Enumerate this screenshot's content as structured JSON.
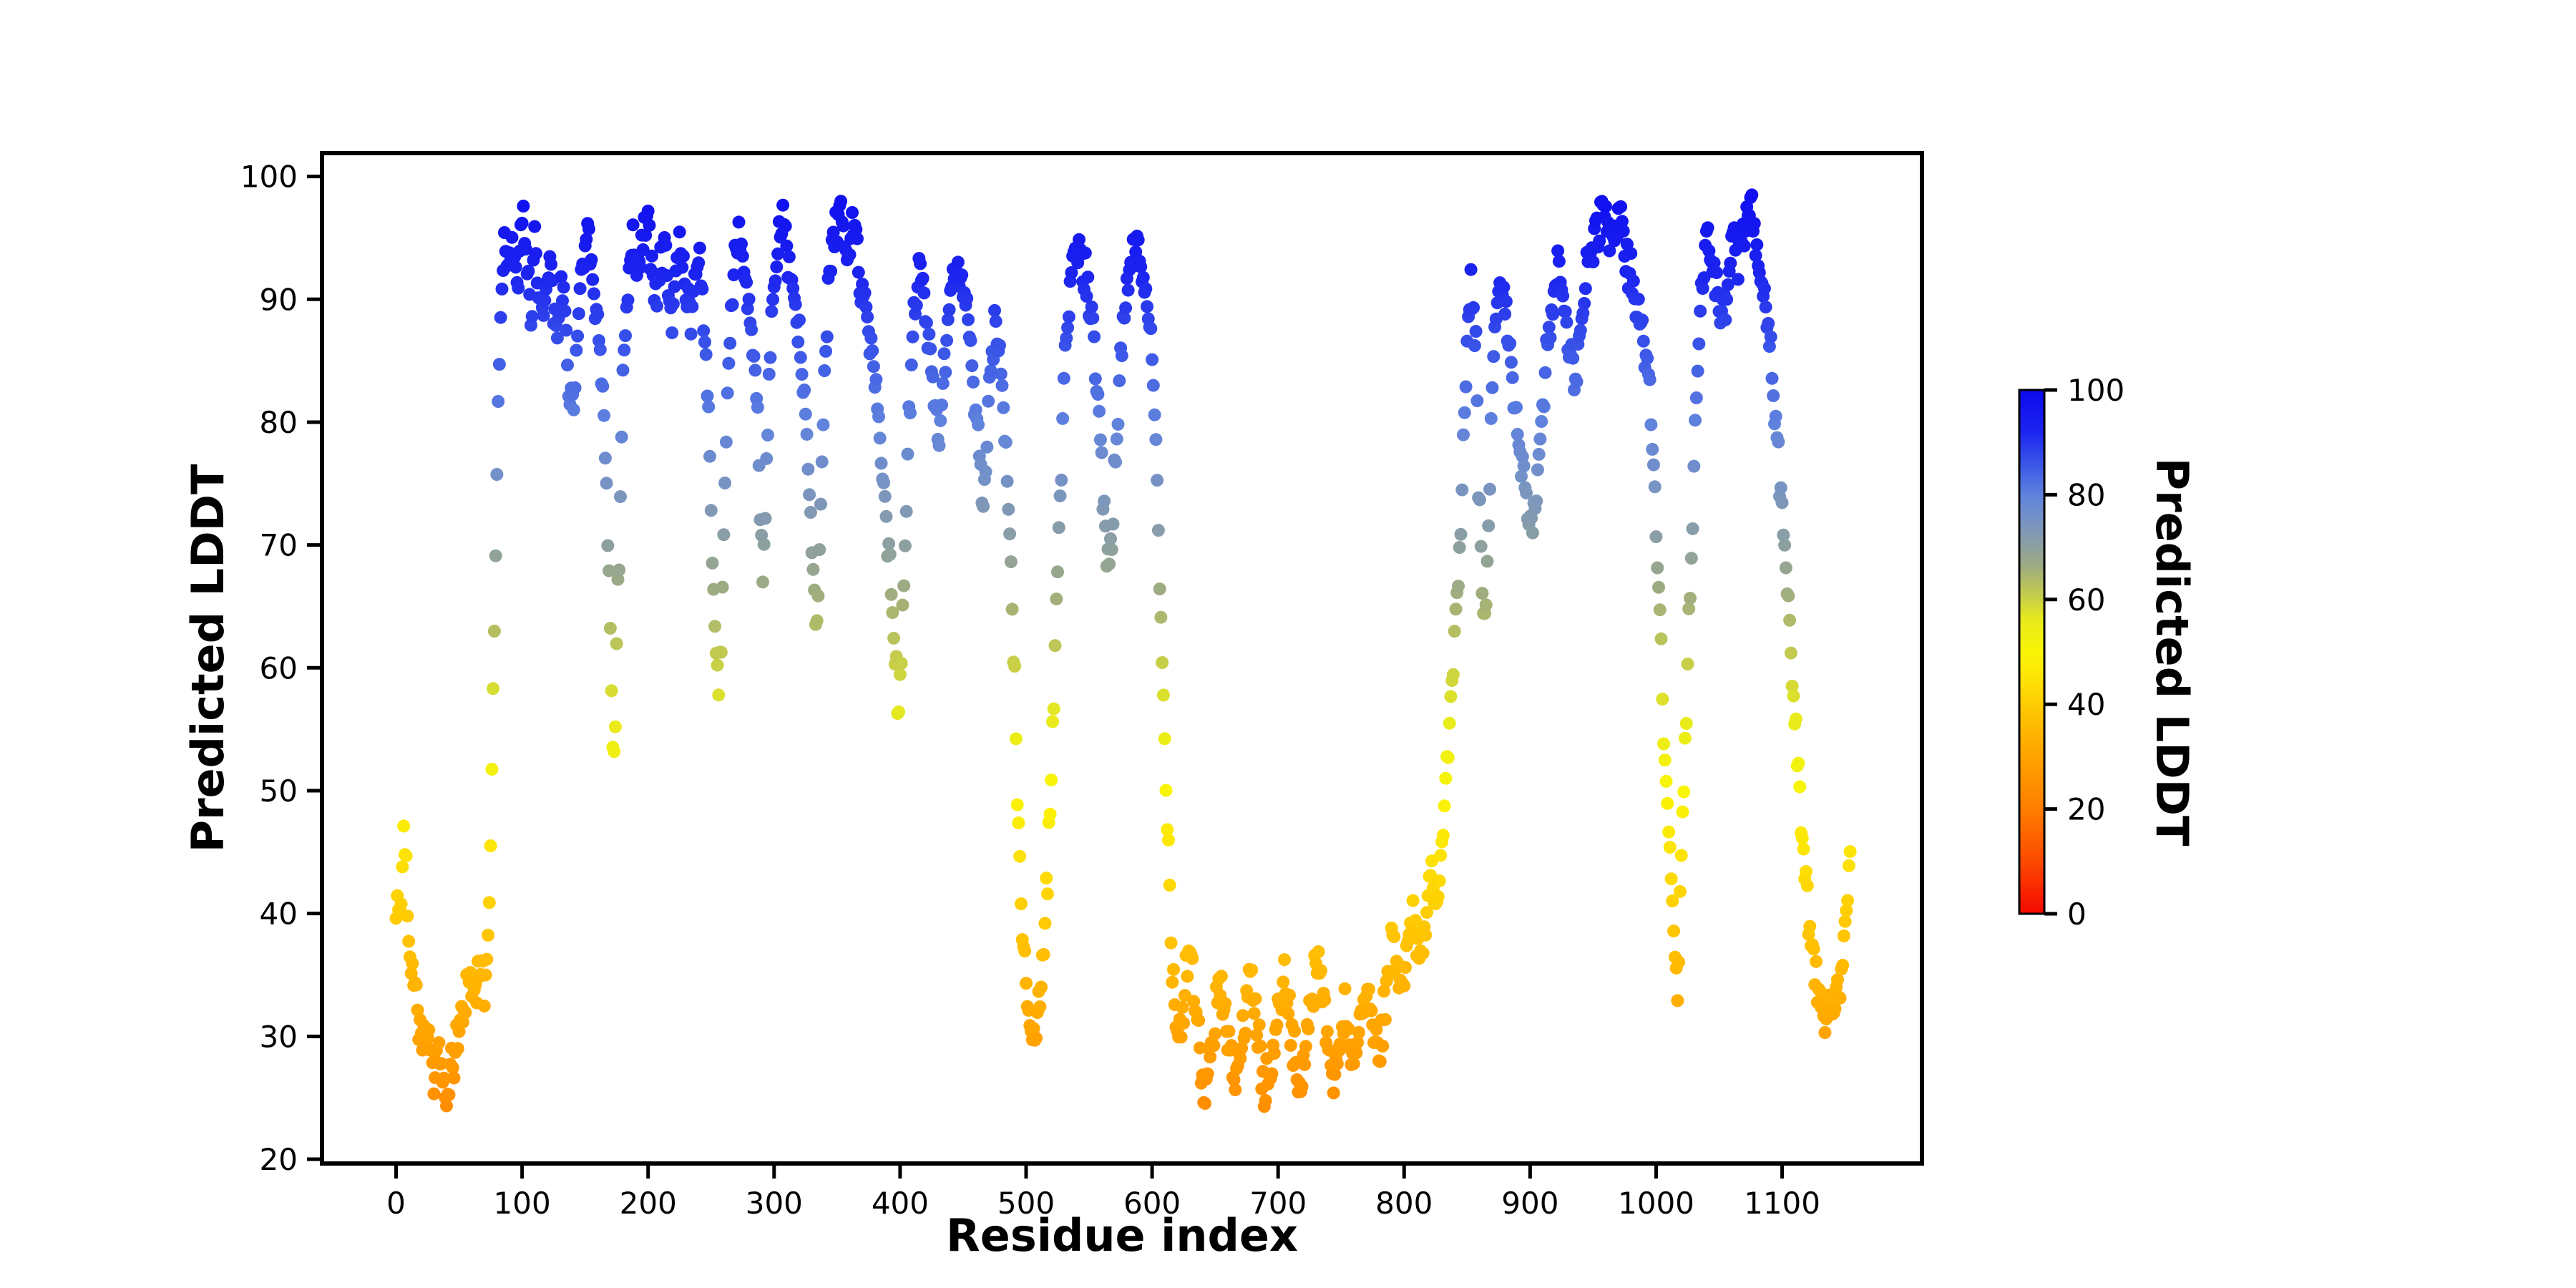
{
  "figure": {
    "background": "#ffffff"
  },
  "chart_data": {
    "type": "scatter",
    "title": "",
    "xlabel": "Residue index",
    "ylabel": "Predicted LDDT",
    "legend": "none",
    "grid": false,
    "xlim": [
      -58.8,
      1211
    ],
    "ylim": [
      19.65,
      101.9
    ],
    "xticks": [
      0,
      100,
      200,
      300,
      400,
      500,
      600,
      700,
      800,
      900,
      1000,
      1100
    ],
    "yticks": [
      20,
      30,
      40,
      50,
      60,
      70,
      80,
      90,
      100
    ],
    "colorbar": {
      "label": "Predicted LDDT",
      "ticks": [
        0,
        20,
        40,
        60,
        80,
        100
      ],
      "min": 0,
      "max": 100
    },
    "colormap": [
      [
        0,
        "#f50800"
      ],
      [
        10,
        "#fc4a00"
      ],
      [
        20,
        "#ff7e00"
      ],
      [
        30,
        "#ffa300"
      ],
      [
        38,
        "#ffc302"
      ],
      [
        45,
        "#fde405"
      ],
      [
        50,
        "#f9f506"
      ],
      [
        56,
        "#e8ea1c"
      ],
      [
        61,
        "#c3cb4e"
      ],
      [
        66,
        "#a0ad7e"
      ],
      [
        70,
        "#8da0a0"
      ],
      [
        75,
        "#7793c4"
      ],
      [
        80,
        "#5f82dd"
      ],
      [
        86,
        "#3a55e8"
      ],
      [
        92,
        "#1c24ef"
      ],
      [
        100,
        "#0d0af0"
      ]
    ],
    "marker_radius": 9,
    "n_points": 1155,
    "jitter": 2.3,
    "seed": 42,
    "value_clip": [
      23.2,
      99.0
    ],
    "profile": [
      [
        0,
        39.5
      ],
      [
        2,
        41
      ],
      [
        4,
        40
      ],
      [
        6,
        47
      ],
      [
        8,
        44
      ],
      [
        10,
        38
      ],
      [
        13,
        36
      ],
      [
        16,
        33.5
      ],
      [
        19,
        31
      ],
      [
        22,
        29.5
      ],
      [
        25,
        30.5
      ],
      [
        28,
        28
      ],
      [
        31,
        27
      ],
      [
        34,
        29
      ],
      [
        37,
        26
      ],
      [
        40,
        24.5
      ],
      [
        43,
        26.5
      ],
      [
        46,
        28
      ],
      [
        49,
        30
      ],
      [
        52,
        31.5
      ],
      [
        55,
        33
      ],
      [
        58,
        35.5
      ],
      [
        61,
        33
      ],
      [
        64,
        34.5
      ],
      [
        67,
        36.5
      ],
      [
        70,
        34
      ],
      [
        73,
        38
      ],
      [
        75,
        45
      ],
      [
        77,
        58
      ],
      [
        79,
        70
      ],
      [
        81,
        82
      ],
      [
        83,
        90
      ],
      [
        86,
        94
      ],
      [
        89,
        92
      ],
      [
        92,
        95
      ],
      [
        95,
        91
      ],
      [
        98,
        93.5
      ],
      [
        101,
        96
      ],
      [
        104,
        92
      ],
      [
        107,
        89
      ],
      [
        110,
        94
      ],
      [
        113,
        92
      ],
      [
        116,
        88
      ],
      [
        119,
        91
      ],
      [
        122,
        94
      ],
      [
        125,
        90
      ],
      [
        128,
        87
      ],
      [
        131,
        92
      ],
      [
        134,
        88
      ],
      [
        137,
        84
      ],
      [
        140,
        81
      ],
      [
        143,
        85
      ],
      [
        146,
        90
      ],
      [
        149,
        93
      ],
      [
        152,
        95
      ],
      [
        155,
        92
      ],
      [
        158,
        89
      ],
      [
        161,
        87
      ],
      [
        164,
        82
      ],
      [
        166,
        77
      ],
      [
        168,
        71
      ],
      [
        170,
        63
      ],
      [
        172,
        53
      ],
      [
        174,
        57
      ],
      [
        176,
        66
      ],
      [
        178,
        74
      ],
      [
        180,
        83
      ],
      [
        183,
        90
      ],
      [
        186,
        93
      ],
      [
        189,
        95.5
      ],
      [
        192,
        92
      ],
      [
        195,
        94
      ],
      [
        198,
        97
      ],
      [
        201,
        95
      ],
      [
        204,
        92
      ],
      [
        207,
        90
      ],
      [
        210,
        93
      ],
      [
        213,
        95
      ],
      [
        216,
        91
      ],
      [
        219,
        88
      ],
      [
        222,
        92
      ],
      [
        225,
        95
      ],
      [
        228,
        93
      ],
      [
        231,
        90
      ],
      [
        234,
        88
      ],
      [
        237,
        92
      ],
      [
        240,
        94
      ],
      [
        243,
        90
      ],
      [
        246,
        85
      ],
      [
        248,
        80
      ],
      [
        250,
        73
      ],
      [
        252,
        66
      ],
      [
        254,
        60
      ],
      [
        256,
        56
      ],
      [
        258,
        63
      ],
      [
        260,
        70
      ],
      [
        262,
        78
      ],
      [
        264,
        85
      ],
      [
        266,
        90
      ],
      [
        269,
        93
      ],
      [
        272,
        95
      ],
      [
        275,
        93
      ],
      [
        278,
        91
      ],
      [
        281,
        88
      ],
      [
        284,
        85
      ],
      [
        287,
        80
      ],
      [
        289,
        74
      ],
      [
        291,
        68
      ],
      [
        293,
        73
      ],
      [
        295,
        80
      ],
      [
        297,
        86
      ],
      [
        299,
        90
      ],
      [
        302,
        93
      ],
      [
        305,
        95
      ],
      [
        308,
        96
      ],
      [
        311,
        93
      ],
      [
        314,
        91
      ],
      [
        317,
        89
      ],
      [
        320,
        87
      ],
      [
        323,
        83
      ],
      [
        326,
        78
      ],
      [
        329,
        72
      ],
      [
        332,
        67
      ],
      [
        334,
        64
      ],
      [
        336,
        70
      ],
      [
        338,
        77
      ],
      [
        340,
        84
      ],
      [
        343,
        90
      ],
      [
        346,
        94
      ],
      [
        349,
        96
      ],
      [
        352,
        97.5
      ],
      [
        355,
        95
      ],
      [
        358,
        93
      ],
      [
        361,
        95
      ],
      [
        364,
        96
      ],
      [
        367,
        93
      ],
      [
        370,
        91
      ],
      [
        373,
        89
      ],
      [
        376,
        87
      ],
      [
        379,
        85
      ],
      [
        382,
        81
      ],
      [
        385,
        78
      ],
      [
        388,
        74
      ],
      [
        391,
        69
      ],
      [
        394,
        64
      ],
      [
        397,
        59
      ],
      [
        399,
        56.5
      ],
      [
        401,
        61
      ],
      [
        403,
        67
      ],
      [
        405,
        74
      ],
      [
        407,
        80
      ],
      [
        409,
        85
      ],
      [
        412,
        89
      ],
      [
        415,
        93
      ],
      [
        418,
        91
      ],
      [
        421,
        88
      ],
      [
        424,
        86
      ],
      [
        427,
        82
      ],
      [
        430,
        78
      ],
      [
        433,
        81
      ],
      [
        436,
        85
      ],
      [
        439,
        89
      ],
      [
        442,
        92
      ],
      [
        445,
        94
      ],
      [
        448,
        92
      ],
      [
        451,
        90
      ],
      [
        454,
        88
      ],
      [
        457,
        85
      ],
      [
        460,
        80
      ],
      [
        463,
        77
      ],
      [
        466,
        74
      ],
      [
        469,
        79
      ],
      [
        472,
        84
      ],
      [
        475,
        88
      ],
      [
        478,
        86
      ],
      [
        481,
        82
      ],
      [
        484,
        77
      ],
      [
        487,
        71
      ],
      [
        490,
        62
      ],
      [
        492,
        54
      ],
      [
        494,
        47
      ],
      [
        496,
        41
      ],
      [
        498,
        37
      ],
      [
        500,
        34
      ],
      [
        502,
        32
      ],
      [
        504,
        30.5
      ],
      [
        506,
        29.5
      ],
      [
        508,
        31
      ],
      [
        510,
        33
      ],
      [
        512,
        35
      ],
      [
        514,
        37
      ],
      [
        516,
        41
      ],
      [
        518,
        46
      ],
      [
        520,
        52
      ],
      [
        522,
        58
      ],
      [
        524,
        64
      ],
      [
        526,
        70
      ],
      [
        528,
        77
      ],
      [
        530,
        83
      ],
      [
        533,
        88
      ],
      [
        536,
        91
      ],
      [
        539,
        93
      ],
      [
        542,
        95
      ],
      [
        545,
        93
      ],
      [
        548,
        91
      ],
      [
        551,
        89
      ],
      [
        554,
        86
      ],
      [
        557,
        82
      ],
      [
        560,
        76
      ],
      [
        563,
        71
      ],
      [
        566,
        69
      ],
      [
        569,
        73
      ],
      [
        572,
        79
      ],
      [
        575,
        85
      ],
      [
        578,
        89
      ],
      [
        581,
        92
      ],
      [
        584,
        94
      ],
      [
        587,
        95
      ],
      [
        590,
        93
      ],
      [
        593,
        91
      ],
      [
        596,
        90
      ],
      [
        599,
        88
      ],
      [
        601,
        84
      ],
      [
        603,
        78
      ],
      [
        605,
        72
      ],
      [
        607,
        64
      ],
      [
        609,
        57
      ],
      [
        611,
        50
      ],
      [
        613,
        44
      ],
      [
        615,
        38
      ],
      [
        617,
        34
      ],
      [
        619,
        31
      ],
      [
        621,
        29
      ],
      [
        624,
        32
      ],
      [
        627,
        35
      ],
      [
        630,
        37
      ],
      [
        633,
        34
      ],
      [
        636,
        31
      ],
      [
        639,
        28
      ],
      [
        642,
        26
      ],
      [
        645,
        28
      ],
      [
        648,
        30
      ],
      [
        651,
        33
      ],
      [
        654,
        35
      ],
      [
        657,
        32
      ],
      [
        660,
        30
      ],
      [
        663,
        28
      ],
      [
        666,
        26
      ],
      [
        669,
        28
      ],
      [
        672,
        30
      ],
      [
        675,
        33
      ],
      [
        678,
        35
      ],
      [
        681,
        32
      ],
      [
        684,
        30
      ],
      [
        687,
        27
      ],
      [
        690,
        25.5
      ],
      [
        693,
        27
      ],
      [
        696,
        29
      ],
      [
        699,
        31
      ],
      [
        702,
        33
      ],
      [
        705,
        35
      ],
      [
        708,
        32
      ],
      [
        711,
        30
      ],
      [
        714,
        28
      ],
      [
        717,
        26
      ],
      [
        720,
        28
      ],
      [
        723,
        30
      ],
      [
        726,
        33
      ],
      [
        729,
        35
      ],
      [
        732,
        37
      ],
      [
        735,
        34
      ],
      [
        738,
        31
      ],
      [
        741,
        28
      ],
      [
        744,
        26
      ],
      [
        747,
        28
      ],
      [
        750,
        30
      ],
      [
        753,
        32
      ],
      [
        756,
        29
      ],
      [
        759,
        27
      ],
      [
        762,
        29
      ],
      [
        765,
        31
      ],
      [
        768,
        33
      ],
      [
        771,
        35
      ],
      [
        774,
        32
      ],
      [
        777,
        30
      ],
      [
        780,
        28
      ],
      [
        783,
        31
      ],
      [
        786,
        34
      ],
      [
        789,
        36
      ],
      [
        792,
        38
      ],
      [
        795,
        35
      ],
      [
        798,
        33
      ],
      [
        801,
        36
      ],
      [
        804,
        39
      ],
      [
        807,
        41
      ],
      [
        810,
        38
      ],
      [
        813,
        36
      ],
      [
        816,
        39
      ],
      [
        819,
        41
      ],
      [
        822,
        43
      ],
      [
        825,
        40
      ],
      [
        828,
        43
      ],
      [
        831,
        47
      ],
      [
        834,
        52
      ],
      [
        837,
        57
      ],
      [
        840,
        62
      ],
      [
        843,
        67
      ],
      [
        845,
        72
      ],
      [
        847,
        78
      ],
      [
        849,
        84
      ],
      [
        851,
        88
      ],
      [
        853,
        91
      ],
      [
        855,
        89
      ],
      [
        857,
        87
      ],
      [
        859,
        76
      ],
      [
        861,
        68
      ],
      [
        863,
        63
      ],
      [
        865,
        66
      ],
      [
        867,
        72
      ],
      [
        869,
        79
      ],
      [
        871,
        85
      ],
      [
        873,
        90
      ],
      [
        875,
        92
      ],
      [
        878,
        90
      ],
      [
        881,
        88
      ],
      [
        884,
        86
      ],
      [
        887,
        83
      ],
      [
        890,
        80
      ],
      [
        893,
        77
      ],
      [
        896,
        75
      ],
      [
        899,
        73
      ],
      [
        902,
        72
      ],
      [
        905,
        75
      ],
      [
        908,
        78
      ],
      [
        911,
        82
      ],
      [
        914,
        86
      ],
      [
        917,
        89
      ],
      [
        920,
        91
      ],
      [
        923,
        93
      ],
      [
        926,
        91
      ],
      [
        929,
        88
      ],
      [
        932,
        86
      ],
      [
        935,
        83
      ],
      [
        938,
        86
      ],
      [
        941,
        89
      ],
      [
        944,
        91
      ],
      [
        947,
        93
      ],
      [
        950,
        94
      ],
      [
        953,
        96
      ],
      [
        956,
        97
      ],
      [
        959,
        98
      ],
      [
        962,
        96
      ],
      [
        965,
        94
      ],
      [
        968,
        96
      ],
      [
        971,
        97
      ],
      [
        974,
        95
      ],
      [
        977,
        93
      ],
      [
        980,
        92
      ],
      [
        983,
        90
      ],
      [
        986,
        89
      ],
      [
        989,
        87
      ],
      [
        992,
        85
      ],
      [
        995,
        82
      ],
      [
        997,
        78
      ],
      [
        999,
        74
      ],
      [
        1001,
        69
      ],
      [
        1003,
        64
      ],
      [
        1005,
        58
      ],
      [
        1007,
        53
      ],
      [
        1009,
        49
      ],
      [
        1011,
        46
      ],
      [
        1013,
        43
      ],
      [
        1015,
        37
      ],
      [
        1017,
        33
      ],
      [
        1019,
        41
      ],
      [
        1021,
        48
      ],
      [
        1023,
        54
      ],
      [
        1025,
        60
      ],
      [
        1027,
        66
      ],
      [
        1029,
        72
      ],
      [
        1031,
        79
      ],
      [
        1033,
        85
      ],
      [
        1035,
        90
      ],
      [
        1038,
        93
      ],
      [
        1041,
        95
      ],
      [
        1044,
        93
      ],
      [
        1047,
        91
      ],
      [
        1050,
        89
      ],
      [
        1053,
        88
      ],
      [
        1056,
        90
      ],
      [
        1059,
        93
      ],
      [
        1062,
        95
      ],
      [
        1065,
        93
      ],
      [
        1068,
        95
      ],
      [
        1071,
        96
      ],
      [
        1074,
        97.5
      ],
      [
        1077,
        96
      ],
      [
        1080,
        94
      ],
      [
        1083,
        92
      ],
      [
        1086,
        90
      ],
      [
        1089,
        88
      ],
      [
        1092,
        85
      ],
      [
        1095,
        80
      ],
      [
        1098,
        76
      ],
      [
        1101,
        71
      ],
      [
        1104,
        66
      ],
      [
        1107,
        61
      ],
      [
        1110,
        56
      ],
      [
        1113,
        51
      ],
      [
        1116,
        46
      ],
      [
        1119,
        42
      ],
      [
        1122,
        39
      ],
      [
        1125,
        36.5
      ],
      [
        1128,
        34.5
      ],
      [
        1131,
        33
      ],
      [
        1134,
        32
      ],
      [
        1137,
        33.5
      ],
      [
        1140,
        32
      ],
      [
        1143,
        34
      ],
      [
        1146,
        33
      ],
      [
        1148,
        36
      ],
      [
        1150,
        39
      ],
      [
        1152,
        42
      ],
      [
        1154,
        45
      ]
    ]
  }
}
